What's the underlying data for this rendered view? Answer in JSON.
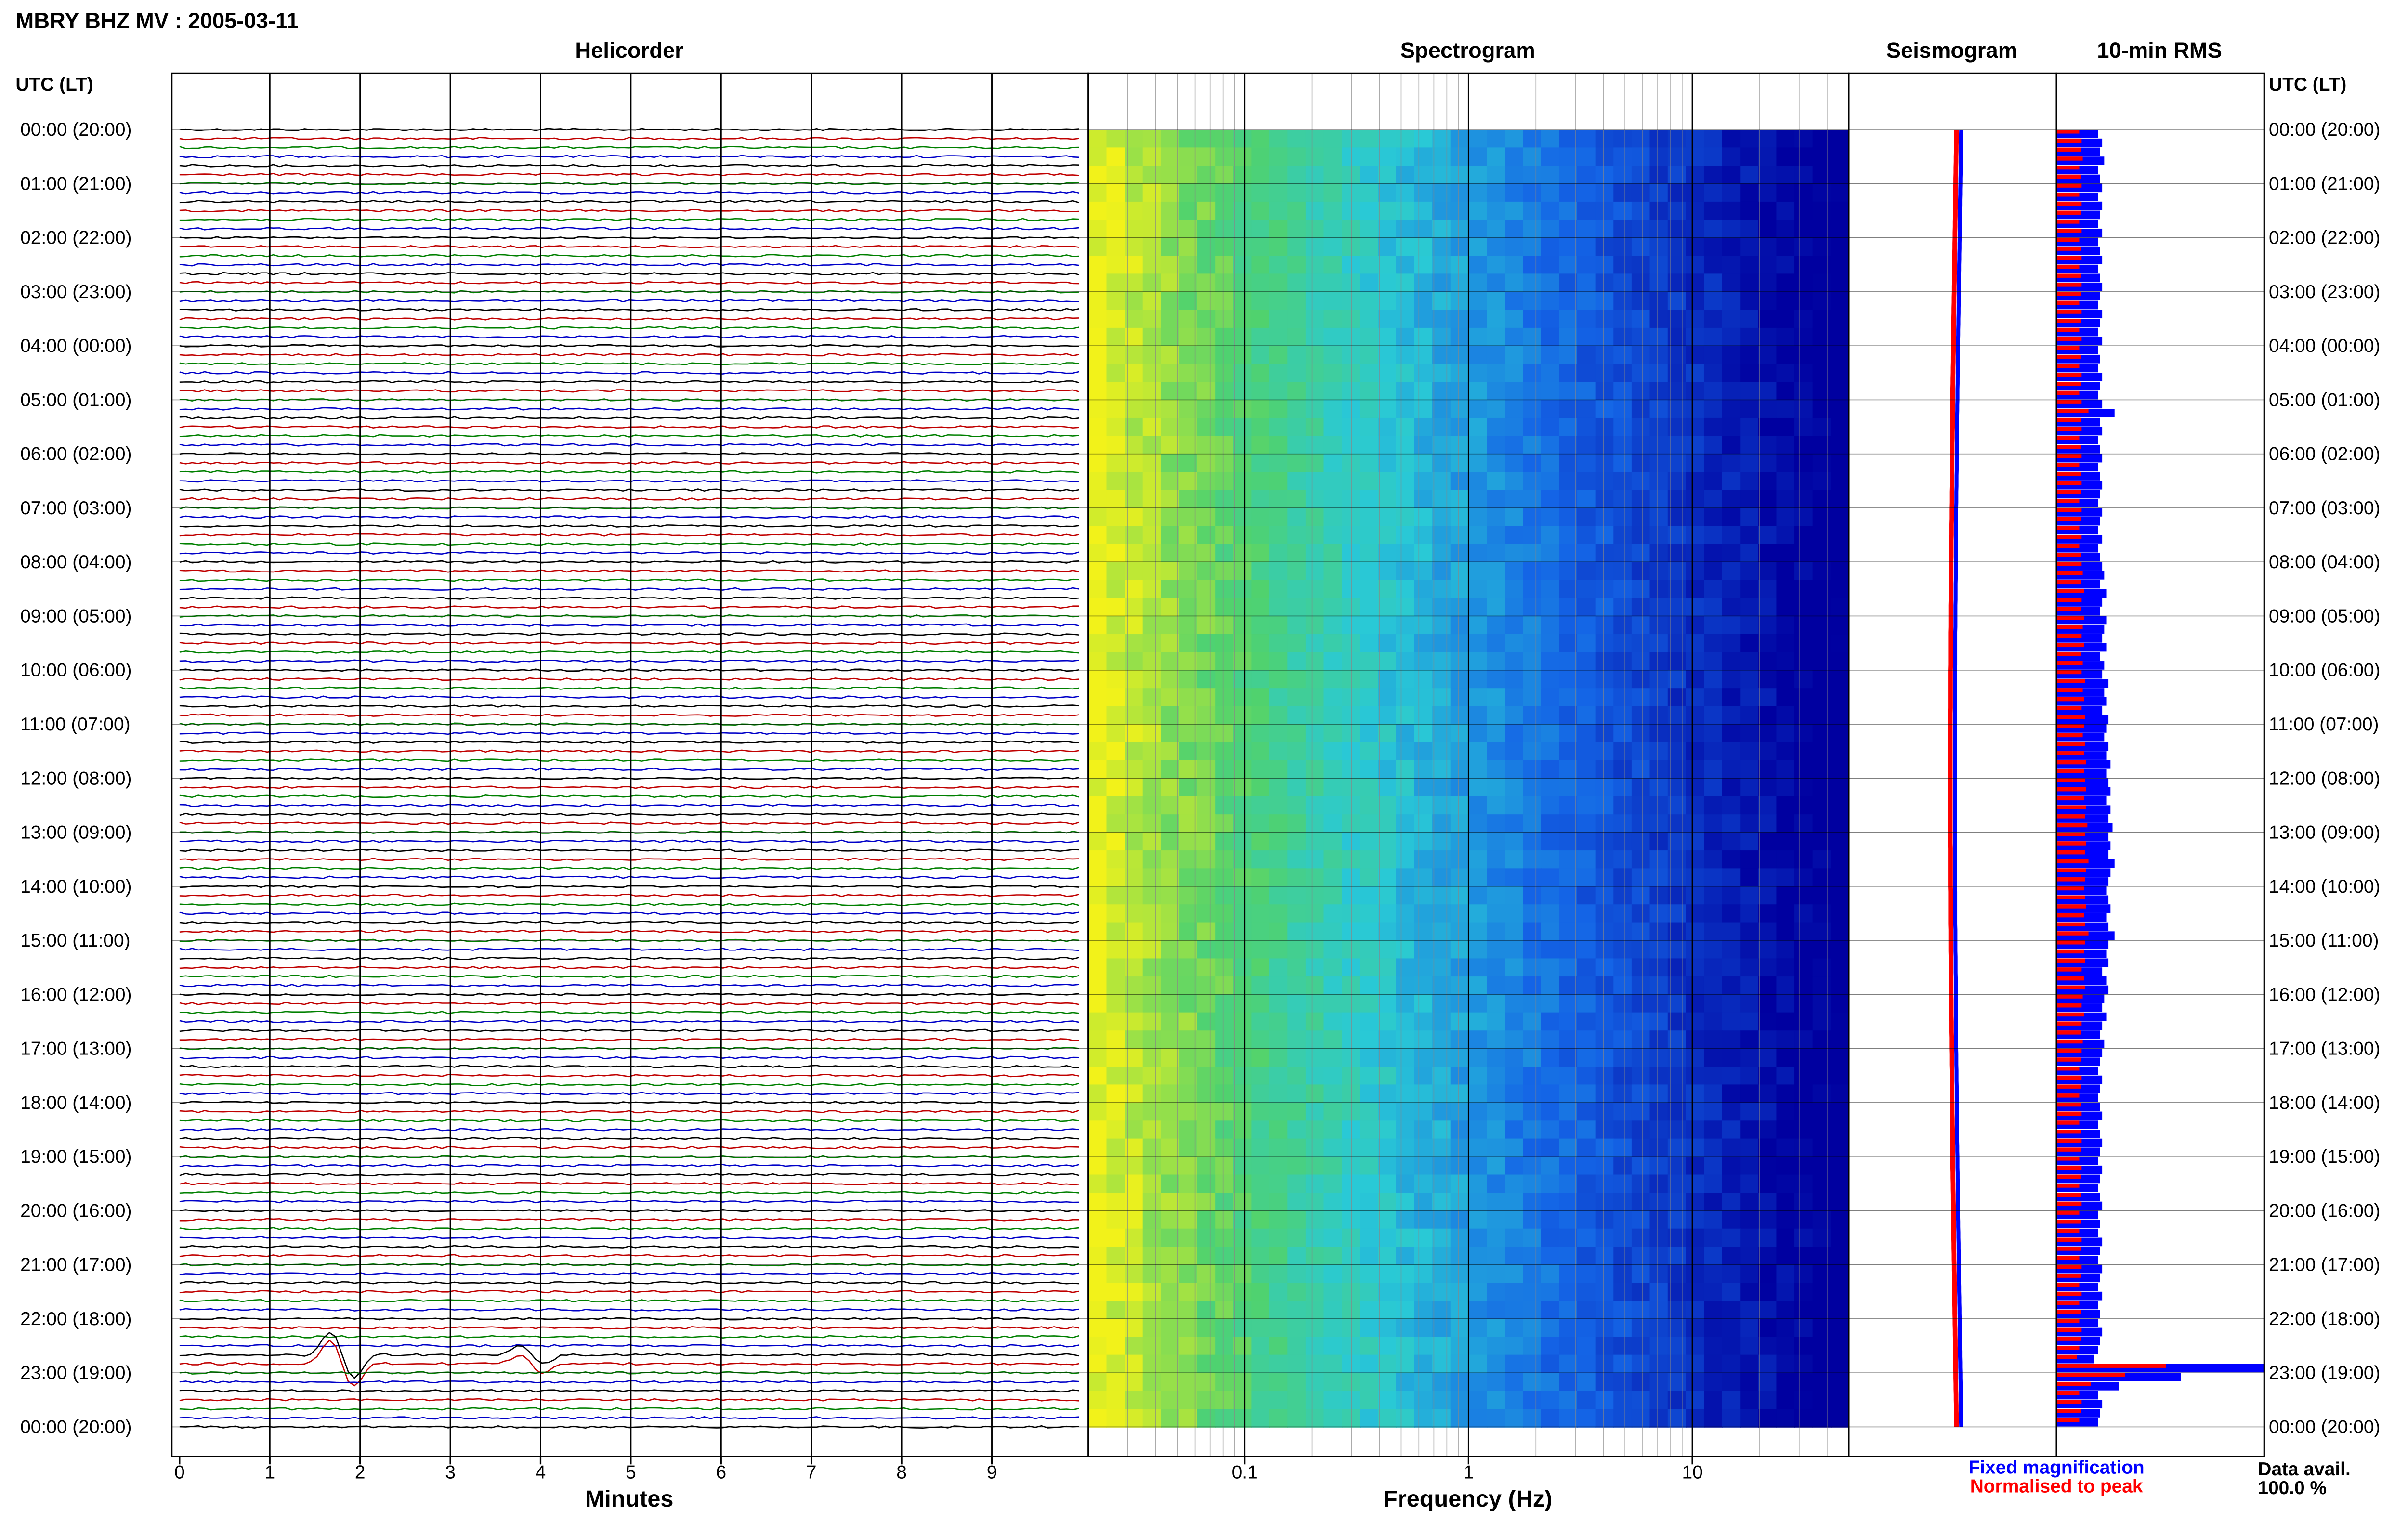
{
  "header": {
    "station_title": "MBRY BHZ MV : 2005-03-11",
    "utc_lt_label": "UTC (LT)"
  },
  "panels": {
    "helicorder_title": "Helicorder",
    "spectrogram_title": "Spectrogram",
    "seismogram_title": "Seismogram",
    "rms_title": "10-min RMS"
  },
  "footer": {
    "minutes_label": "Minutes",
    "frequency_label": "Frequency (Hz)",
    "legend_fixed": "Fixed magnification",
    "legend_normalised": "Normalised to peak",
    "data_avail_label": "Data avail.",
    "data_avail_value": "100.0 %"
  },
  "colors": {
    "trace_cycle": [
      "#000000",
      "#c00000",
      "#008000",
      "#0000c8"
    ],
    "fixed_magnification": "#0000ff",
    "normalised_to_peak": "#ff0000",
    "spectrogram_low": "#f2f21a",
    "spectrogram_mid": "#29c9d6",
    "spectrogram_high": "#0000a0"
  },
  "chart_data": [
    {
      "type": "line",
      "name": "helicorder",
      "xlabel": "Minutes",
      "xlim": [
        0,
        10
      ],
      "x_ticks": [
        "0",
        "1",
        "2",
        "3",
        "4",
        "5",
        "6",
        "7",
        "8",
        "9"
      ],
      "rows_per_hour": 6,
      "hour_labels": [
        "00:00 (20:00)",
        "01:00 (21:00)",
        "02:00 (22:00)",
        "03:00 (23:00)",
        "04:00 (00:00)",
        "05:00 (01:00)",
        "06:00 (02:00)",
        "07:00 (03:00)",
        "08:00 (04:00)",
        "09:00 (05:00)",
        "10:00 (06:00)",
        "11:00 (07:00)",
        "12:00 (08:00)",
        "13:00 (09:00)",
        "14:00 (10:00)",
        "15:00 (11:00)",
        "16:00 (12:00)",
        "17:00 (13:00)",
        "18:00 (14:00)",
        "19:00 (15:00)",
        "20:00 (16:00)",
        "21:00 (17:00)",
        "22:00 (18:00)",
        "23:00 (19:00)",
        "00:00 (20:00)"
      ],
      "events": [
        {
          "hour": 22.8,
          "minute": 1.8,
          "amplitude": 1.0
        },
        {
          "hour": 22.7,
          "minute": 3.9,
          "amplitude": 0.4
        }
      ]
    },
    {
      "type": "heatmap",
      "name": "spectrogram",
      "xlabel": "Frequency (Hz)",
      "x_scale": "log",
      "xlim": [
        0.02,
        50
      ],
      "x_ticks": [
        "0.1",
        "1",
        "10"
      ],
      "ylim_hours": [
        0,
        24
      ]
    },
    {
      "type": "line",
      "name": "seismogram",
      "series": [
        {
          "name": "Fixed magnification"
        },
        {
          "name": "Normalised to peak"
        }
      ],
      "ylim_hours": [
        0,
        24
      ]
    },
    {
      "type": "bar",
      "name": "10-min RMS",
      "orientation": "horizontal",
      "ylim_hours": [
        0,
        24
      ],
      "fixed_magnification": [
        0.2,
        0.22,
        0.21,
        0.23,
        0.2,
        0.21,
        0.22,
        0.2,
        0.22,
        0.21,
        0.2,
        0.22,
        0.2,
        0.21,
        0.22,
        0.2,
        0.21,
        0.22,
        0.21,
        0.2,
        0.22,
        0.21,
        0.2,
        0.22,
        0.2,
        0.21,
        0.2,
        0.22,
        0.21,
        0.2,
        0.22,
        0.28,
        0.21,
        0.22,
        0.2,
        0.21,
        0.22,
        0.2,
        0.21,
        0.22,
        0.21,
        0.2,
        0.22,
        0.21,
        0.2,
        0.22,
        0.2,
        0.21,
        0.22,
        0.23,
        0.21,
        0.24,
        0.22,
        0.21,
        0.24,
        0.23,
        0.22,
        0.24,
        0.21,
        0.23,
        0.22,
        0.25,
        0.23,
        0.24,
        0.22,
        0.25,
        0.24,
        0.23,
        0.25,
        0.24,
        0.26,
        0.24,
        0.25,
        0.26,
        0.24,
        0.26,
        0.25,
        0.27,
        0.25,
        0.26,
        0.25,
        0.28,
        0.26,
        0.25,
        0.24,
        0.25,
        0.26,
        0.24,
        0.25,
        0.28,
        0.25,
        0.24,
        0.25,
        0.22,
        0.24,
        0.25,
        0.23,
        0.22,
        0.24,
        0.22,
        0.21,
        0.23,
        0.22,
        0.21,
        0.2,
        0.22,
        0.21,
        0.2,
        0.21,
        0.22,
        0.2,
        0.21,
        0.22,
        0.21,
        0.2,
        0.22,
        0.21,
        0.2,
        0.21,
        0.22,
        0.2,
        0.21,
        0.2,
        0.22,
        0.21,
        0.2,
        0.22,
        0.21,
        0.2,
        0.22,
        0.2,
        0.21,
        0.2,
        0.22,
        0.21,
        0.2,
        0.18,
        1.0,
        0.6,
        0.3,
        0.2,
        0.22,
        0.21,
        0.2
      ]
    }
  ]
}
